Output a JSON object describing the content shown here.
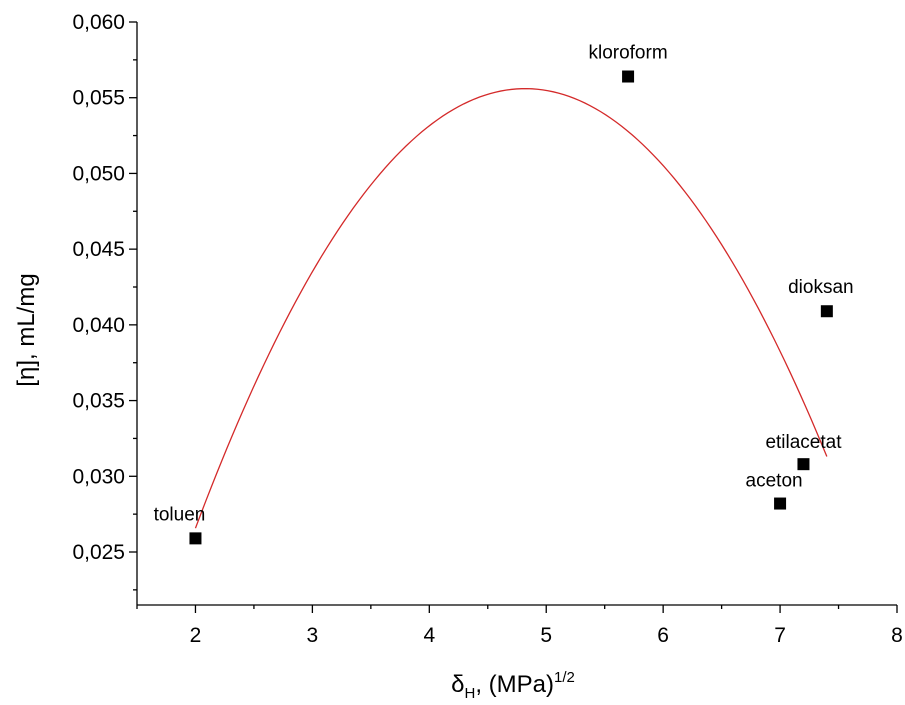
{
  "chart_data": {
    "type": "scatter",
    "xlabel": {
      "main": "δ",
      "sub": "H",
      "rest": ", (MPa)",
      "sup": "1/2"
    },
    "ylabel": "[η], mL/mg",
    "xlim": [
      1.5,
      8
    ],
    "ylim": [
      0.0215,
      0.06
    ],
    "x_ticks": [
      2,
      3,
      4,
      5,
      6,
      7,
      8
    ],
    "x_tick_labels": [
      "2",
      "3",
      "4",
      "5",
      "6",
      "7",
      "8"
    ],
    "y_ticks": [
      0.025,
      0.03,
      0.035,
      0.04,
      0.045,
      0.05,
      0.055,
      0.06
    ],
    "y_tick_labels": [
      "0,025",
      "0,030",
      "0,035",
      "0,040",
      "0,045",
      "0,050",
      "0,055",
      "0,060"
    ],
    "points": [
      {
        "label": "toluen",
        "x": 2.0,
        "y": 0.0259
      },
      {
        "label": "kloroform",
        "x": 5.7,
        "y": 0.0564
      },
      {
        "label": "dioksan",
        "x": 7.4,
        "y": 0.0409
      },
      {
        "label": "etilacetat",
        "x": 7.2,
        "y": 0.0308
      },
      {
        "label": "aceton",
        "x": 7.0,
        "y": 0.0282
      }
    ],
    "fit_curve": {
      "type": "quadratic",
      "x_range": [
        2.0,
        7.4
      ],
      "vertex_x": 4.82,
      "vertex_y": 0.0556,
      "a": -0.00365
    },
    "colors": {
      "points": "#000000",
      "curve": "#d42a2a",
      "axes": "#000000"
    },
    "grid": false,
    "legend": "none"
  }
}
